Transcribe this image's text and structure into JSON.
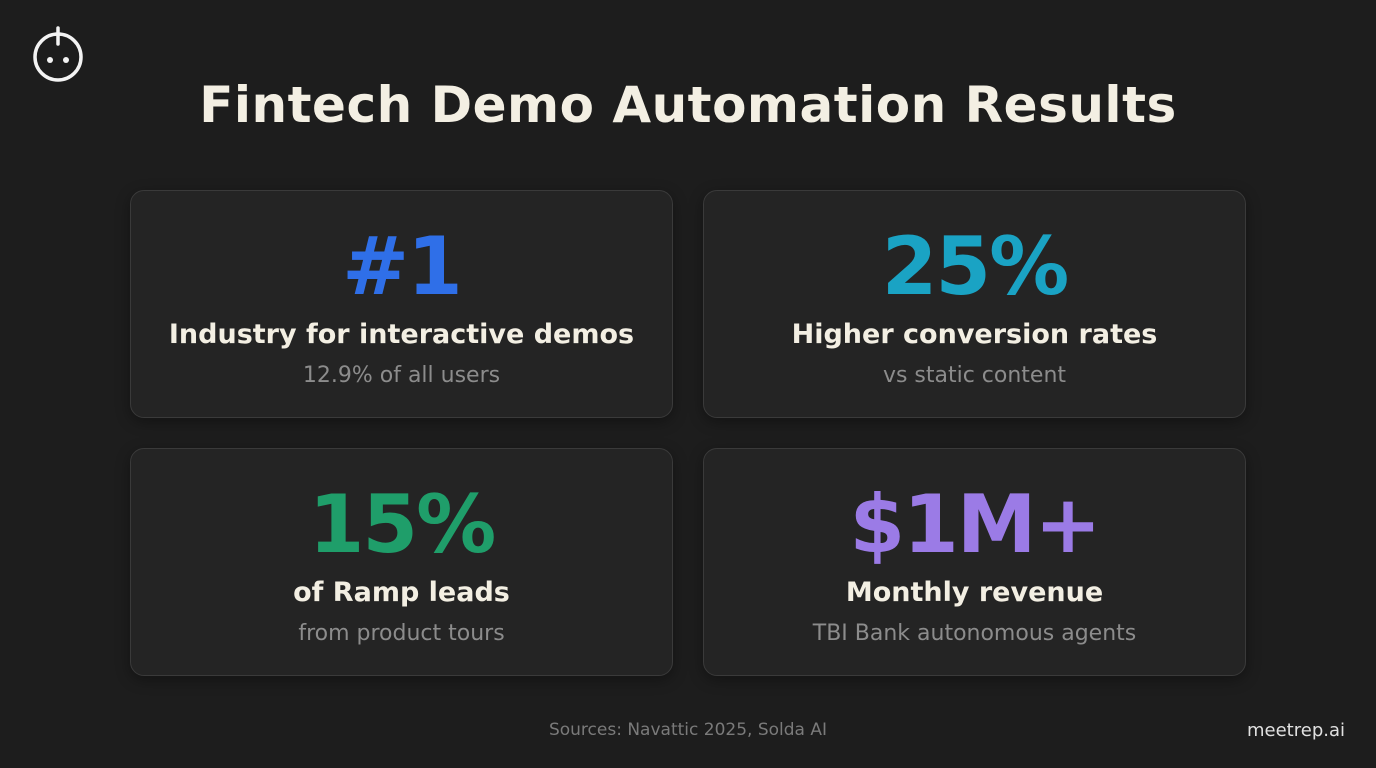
{
  "title": "Fintech Demo Automation Results",
  "cards": [
    {
      "stat": "#1",
      "color": "#2f6fe8",
      "label": "Industry for interactive demos",
      "sub": "12.9% of all users"
    },
    {
      "stat": "25%",
      "color": "#1aa3c4",
      "label": "Higher conversion rates",
      "sub": "vs static content"
    },
    {
      "stat": "15%",
      "color": "#1f9e6a",
      "label": "of Ramp leads",
      "sub": "from product tours"
    },
    {
      "stat": "$1M+",
      "color": "#9b7be6",
      "label": "Monthly revenue",
      "sub": "TBI Bank autonomous agents"
    }
  ],
  "footer": {
    "sources": "Sources: Navattic 2025, Solda AI",
    "brand": "meetrep.ai"
  }
}
